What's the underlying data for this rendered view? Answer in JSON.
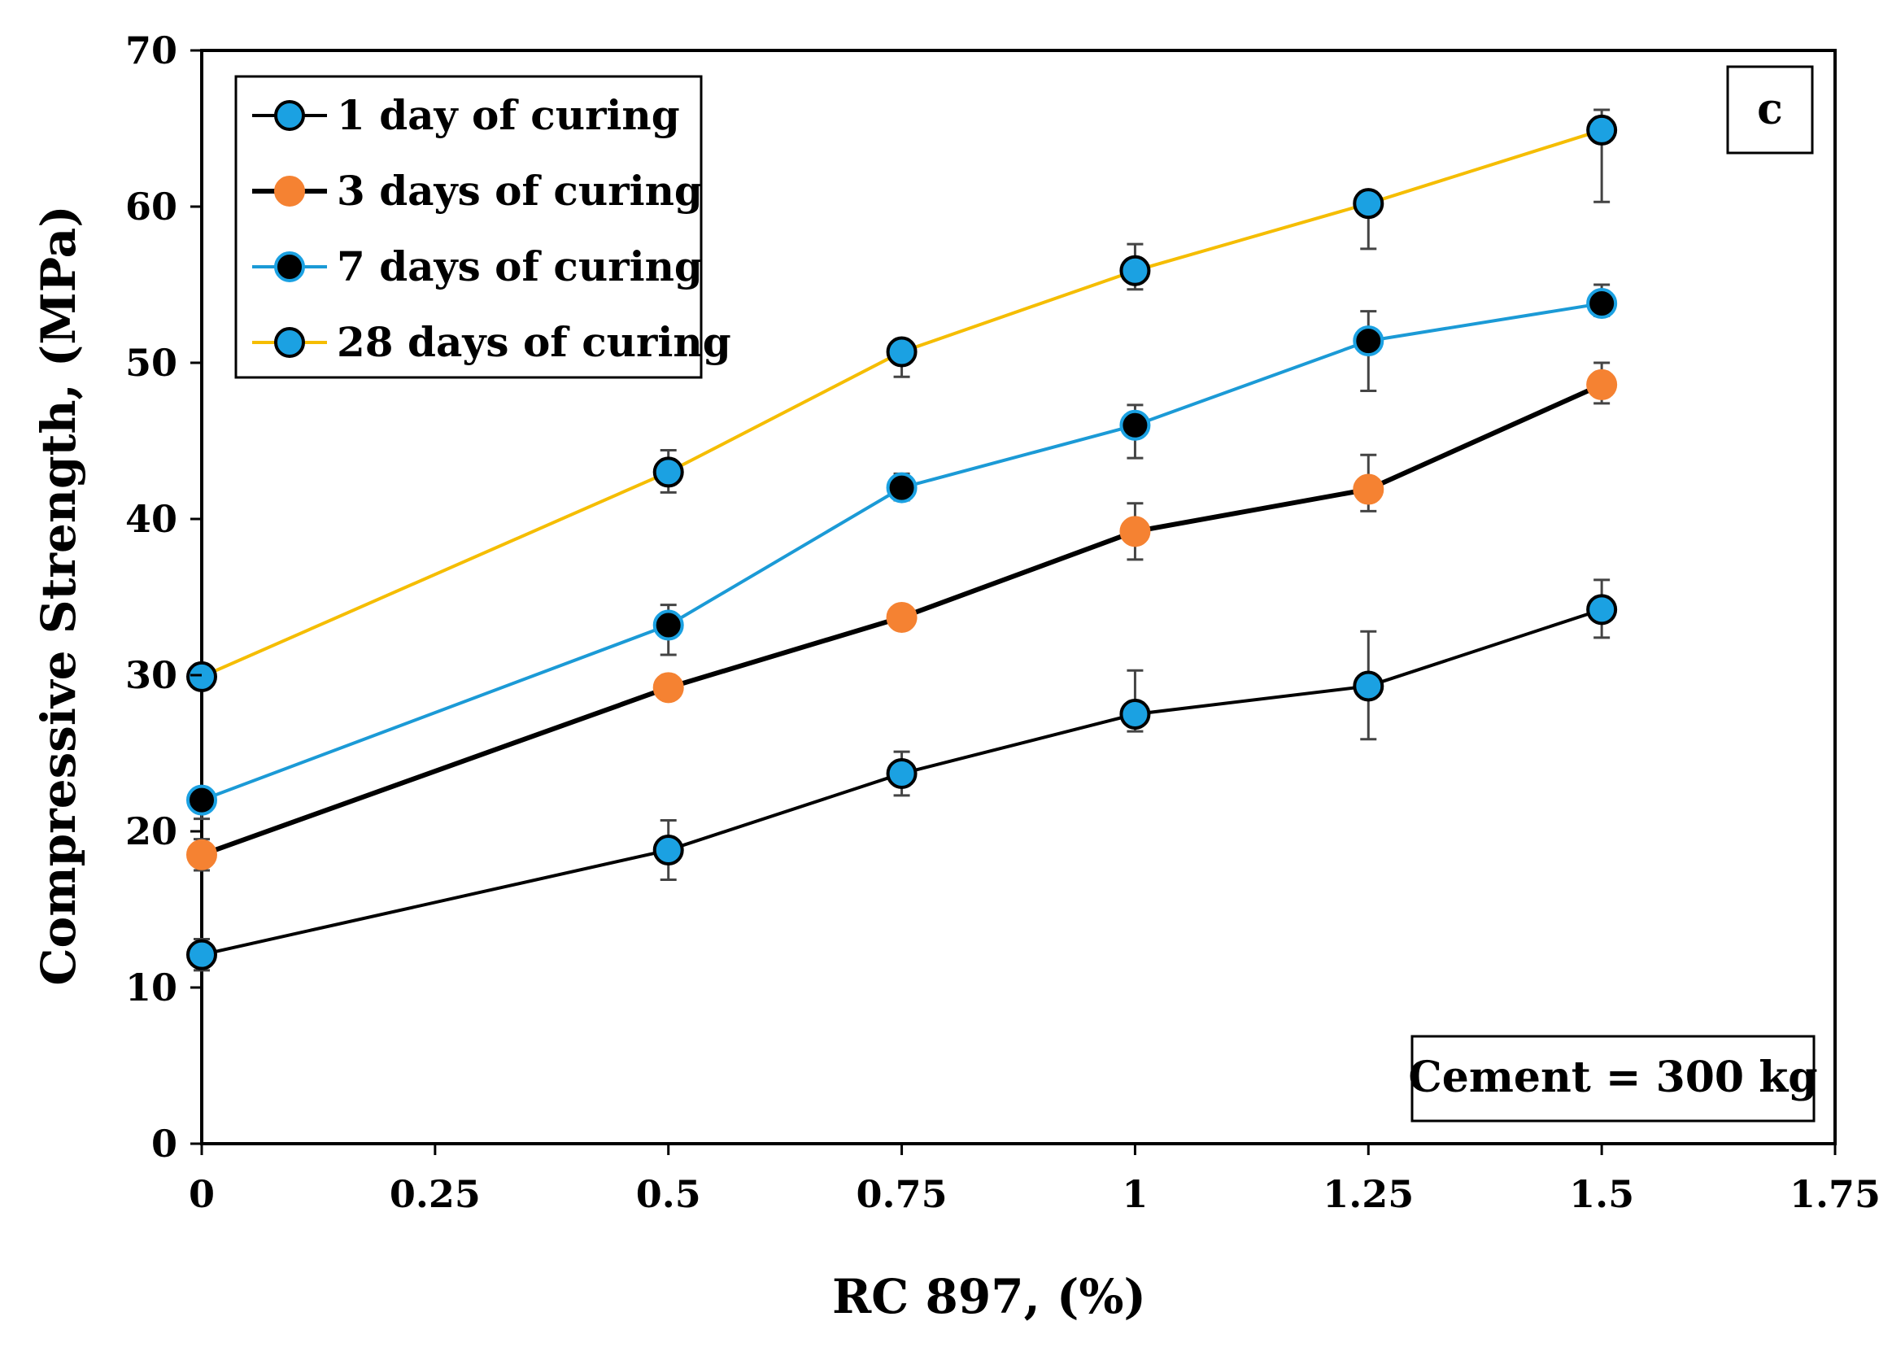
{
  "chart_data": {
    "type": "line",
    "panel_label": "c",
    "annotation": "Cement = 300 kg",
    "xlabel": "RC 897, (%)",
    "ylabel": "Compressive  Strength, (MPa)",
    "xlim": [
      0,
      1.75
    ],
    "ylim": [
      0,
      70
    ],
    "x_ticks": [
      "0",
      "0.25",
      "0.5",
      "0.75",
      "1",
      "1.25",
      "1.5",
      "1.75"
    ],
    "x_tick_values": [
      0,
      0.25,
      0.5,
      0.75,
      1,
      1.25,
      1.5,
      1.75
    ],
    "y_ticks": [
      "0",
      "10",
      "20",
      "30",
      "40",
      "50",
      "60",
      "70"
    ],
    "y_tick_values": [
      0,
      10,
      20,
      30,
      40,
      50,
      60,
      70
    ],
    "grid": false,
    "legend_position": "top-left",
    "x": [
      0,
      0.5,
      0.75,
      1,
      1.25,
      1.5
    ],
    "series": [
      {
        "name": "1 day of curing",
        "line_color": "#000000",
        "marker_fill": "#1ba1e2",
        "marker_outline": "#000000",
        "values": [
          12.1,
          18.8,
          23.7,
          27.5,
          29.3,
          34.2
        ],
        "err_low": [
          1.0,
          1.9,
          1.4,
          1.1,
          3.4,
          1.8
        ],
        "err_high": [
          1.0,
          1.9,
          1.4,
          2.8,
          3.5,
          1.9
        ]
      },
      {
        "name": "3 days of curing",
        "line_color": "#000000",
        "marker_fill": "#f58232",
        "marker_outline": "#f58232",
        "values": [
          18.5,
          29.2,
          33.7,
          39.2,
          41.9,
          48.6
        ],
        "err_low": [
          1.0,
          0.0,
          0.0,
          1.8,
          1.4,
          1.2
        ],
        "err_high": [
          1.0,
          0.0,
          0.0,
          1.8,
          2.2,
          1.4
        ]
      },
      {
        "name": "7 days of curing",
        "line_color": "#1b9ad6",
        "marker_fill": "#000000",
        "marker_outline": "#1ba1e2",
        "values": [
          22.0,
          33.2,
          42.0,
          46.0,
          51.4,
          53.8
        ],
        "err_low": [
          1.2,
          1.9,
          0.8,
          2.1,
          3.2,
          0.8
        ],
        "err_high": [
          0.0,
          1.3,
          0.9,
          1.3,
          1.9,
          1.2
        ]
      },
      {
        "name": "28 days of curing",
        "line_color": "#f5bd00",
        "marker_fill": "#1ba1e2",
        "marker_outline": "#000000",
        "values": [
          29.9,
          43.0,
          50.7,
          55.9,
          60.2,
          64.9
        ],
        "err_low": [
          0.0,
          1.3,
          1.6,
          1.2,
          2.9,
          4.6
        ],
        "err_high": [
          0.0,
          1.4,
          0.0,
          1.7,
          0.0,
          1.3
        ]
      }
    ]
  }
}
